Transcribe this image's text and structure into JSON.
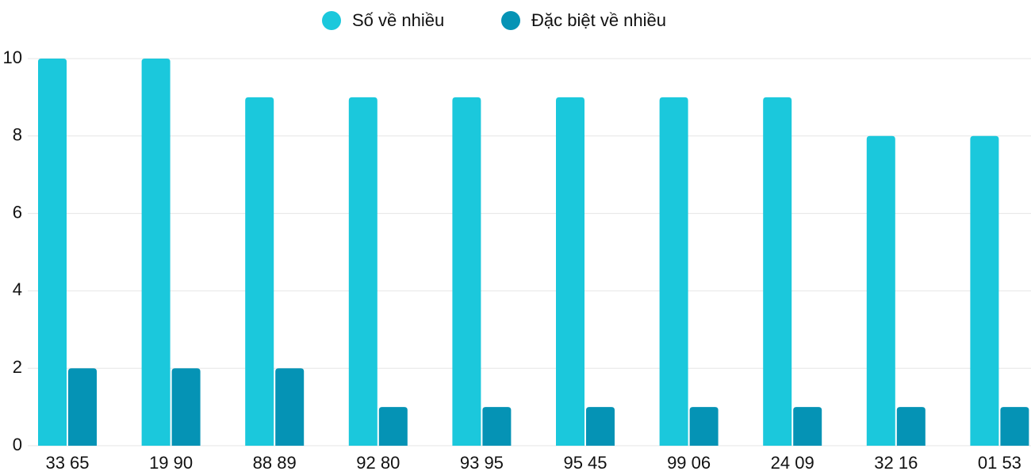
{
  "chart_data": {
    "type": "bar",
    "categories": [
      "33 65",
      "19 90",
      "88 89",
      "92 80",
      "93 95",
      "95 45",
      "99 06",
      "24 09",
      "32 16",
      "01 53"
    ],
    "series": [
      {
        "name": "Số về nhiều",
        "color": "#1bc8dc",
        "values": [
          10,
          10,
          9,
          9,
          9,
          9,
          9,
          9,
          8,
          8
        ]
      },
      {
        "name": "Đặc biệt về nhiều",
        "color": "#0593b5",
        "values": [
          2,
          2,
          2,
          1,
          1,
          1,
          1,
          1,
          1,
          1
        ]
      }
    ],
    "ylim": [
      0,
      10
    ],
    "yticks": [
      0,
      2,
      4,
      6,
      8,
      10
    ],
    "grid": true,
    "legend": "top"
  }
}
